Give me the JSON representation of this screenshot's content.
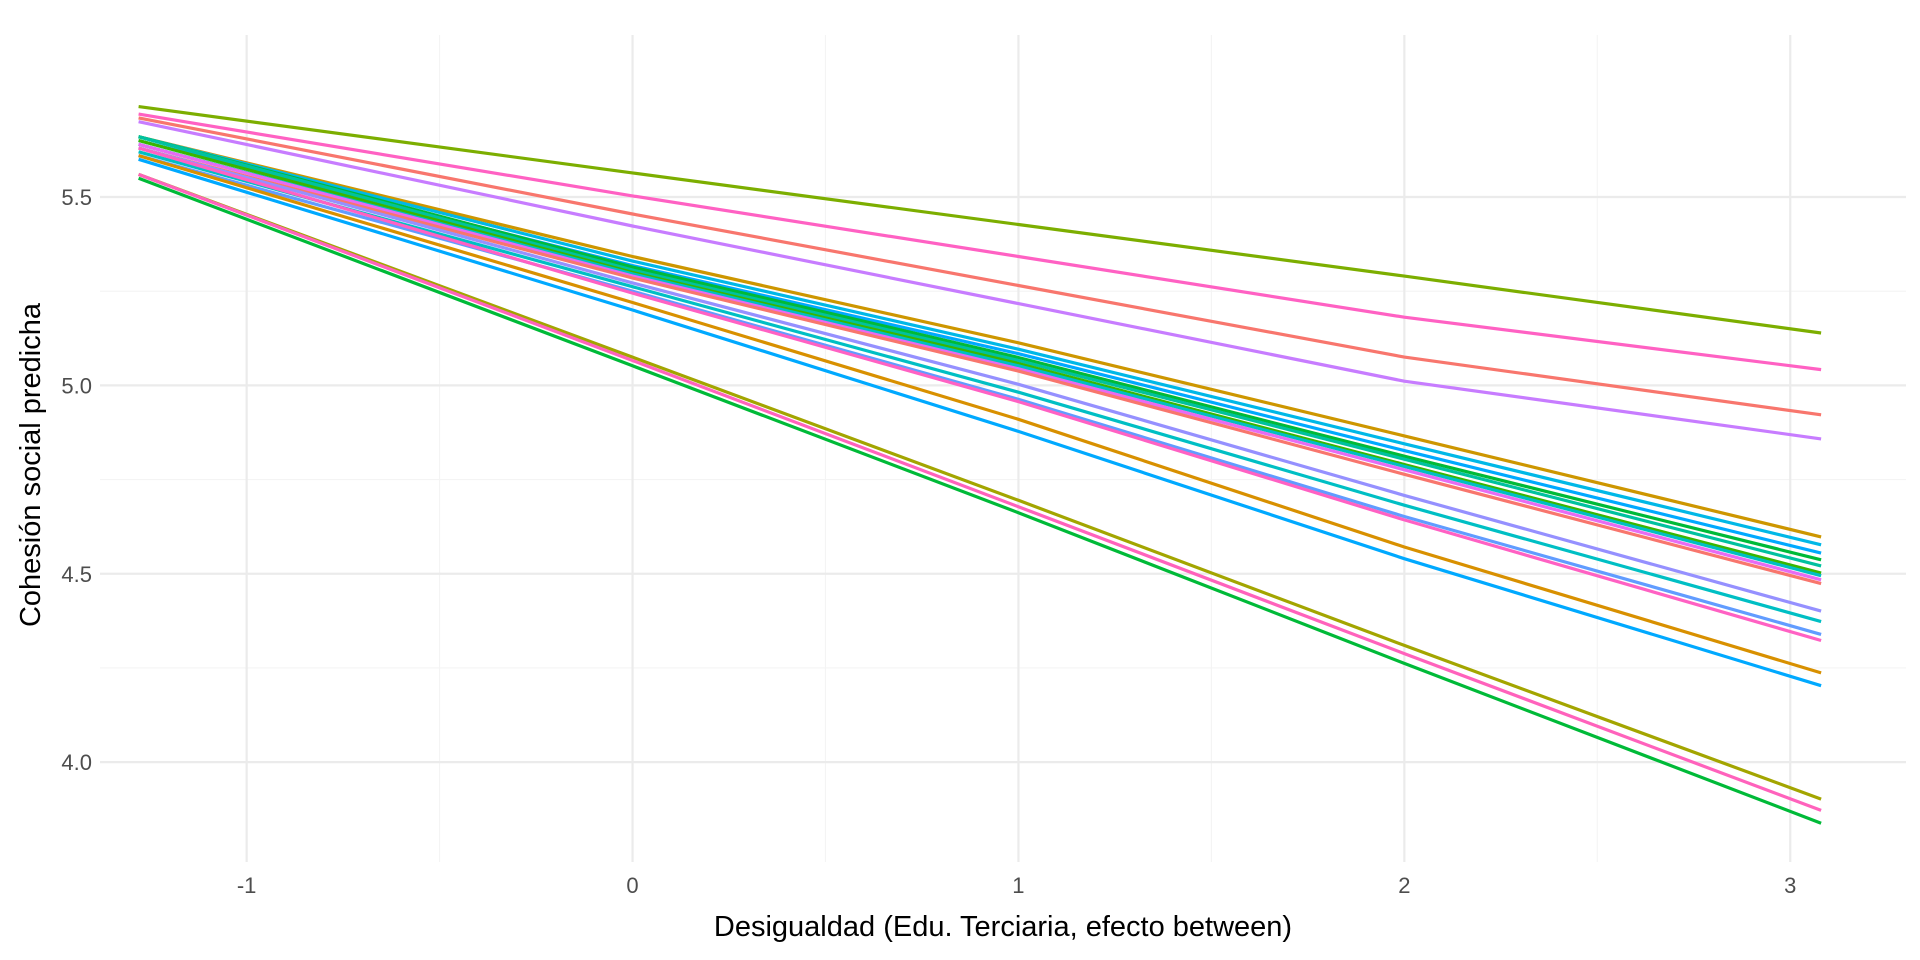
{
  "chart_data": {
    "type": "line",
    "xlabel": "Desigualdad (Edu. Terciaria, efecto between)",
    "ylabel": "Cohesión social predicha",
    "xlim": [
      -1.38,
      3.3
    ],
    "ylim": [
      3.735,
      5.93
    ],
    "x_ticks": [
      -1,
      0,
      1,
      2,
      3
    ],
    "y_ticks": [
      4.0,
      4.5,
      5.0,
      5.5
    ],
    "x_tick_labels": [
      "-1",
      "0",
      "1",
      "2",
      "3"
    ],
    "y_tick_labels": [
      "4.0",
      "4.5",
      "5.0",
      "5.5"
    ],
    "grid": true,
    "legend": "none",
    "x": [
      -1.28,
      0,
      1,
      2,
      3.08
    ],
    "series": [
      {
        "color": "#7CAE00",
        "values": [
          5.74,
          5.564,
          5.427,
          5.29,
          5.139
        ]
      },
      {
        "color": "#FF61C3",
        "values": [
          5.72,
          5.503,
          5.342,
          5.181,
          5.042
        ]
      },
      {
        "color": "#F8766D",
        "values": [
          5.71,
          5.455,
          5.265,
          5.075,
          4.922
        ]
      },
      {
        "color": "#C77CFF",
        "values": [
          5.7,
          5.423,
          5.217,
          5.011,
          4.858
        ]
      },
      {
        "color": "#CD9600",
        "values": [
          5.66,
          5.342,
          5.113,
          4.866,
          4.598
        ]
      },
      {
        "color": "#00B8E7",
        "values": [
          5.66,
          5.33,
          5.096,
          4.845,
          4.577
        ]
      },
      {
        "color": "#00A9FF",
        "values": [
          5.65,
          5.318,
          5.084,
          4.827,
          4.555
        ]
      },
      {
        "color": "#00BA38",
        "values": [
          5.66,
          5.314,
          5.074,
          4.812,
          4.537
        ]
      },
      {
        "color": "#00C19F",
        "values": [
          5.66,
          5.306,
          5.066,
          4.804,
          4.521
        ]
      },
      {
        "color": "#39B600",
        "values": [
          5.65,
          5.3,
          5.058,
          4.79,
          4.502
        ]
      },
      {
        "color": "#00BFC4",
        "values": [
          5.64,
          5.296,
          5.052,
          4.785,
          4.495
        ]
      },
      {
        "color": "#E76BF3",
        "values": [
          5.64,
          5.29,
          5.044,
          4.776,
          4.484
        ]
      },
      {
        "color": "#F8766D",
        "values": [
          5.63,
          5.285,
          5.038,
          4.764,
          4.474
        ]
      },
      {
        "color": "#9590FF",
        "values": [
          5.63,
          5.272,
          5.003,
          4.708,
          4.401
        ]
      },
      {
        "color": "#00BFC4",
        "values": [
          5.62,
          5.262,
          4.982,
          4.682,
          4.373
        ]
      },
      {
        "color": "#619CFF",
        "values": [
          5.61,
          5.25,
          4.963,
          4.652,
          4.339
        ]
      },
      {
        "color": "#FF61C3",
        "values": [
          5.63,
          5.245,
          4.957,
          4.643,
          4.323
        ]
      },
      {
        "color": "#D89000",
        "values": [
          5.61,
          5.22,
          4.91,
          4.571,
          4.237
        ]
      },
      {
        "color": "#00A9FF",
        "values": [
          5.6,
          5.2,
          4.878,
          4.54,
          4.203
        ]
      },
      {
        "color": "#A3A500",
        "values": [
          5.56,
          5.075,
          4.695,
          4.31,
          3.902
        ]
      },
      {
        "color": "#FF62BC",
        "values": [
          5.56,
          5.066,
          4.678,
          4.288,
          3.872
        ]
      },
      {
        "color": "#00BA38",
        "values": [
          5.55,
          5.052,
          4.662,
          4.262,
          3.838
        ]
      }
    ]
  }
}
